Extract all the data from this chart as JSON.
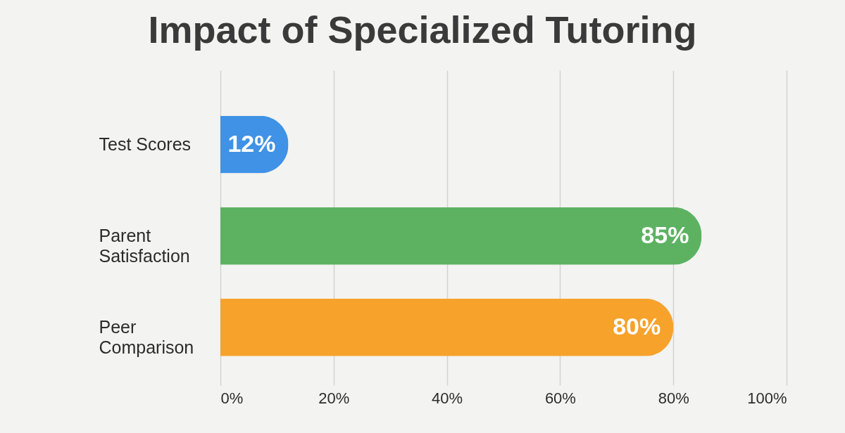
{
  "chart_data": {
    "type": "bar",
    "orientation": "horizontal",
    "title": "Impact of Specialized Tutoring",
    "categories": [
      "Test Scores",
      "Parent Satisfaction",
      "Peer Comparison"
    ],
    "values": [
      12,
      85,
      80
    ],
    "colors": [
      "#3f92e6",
      "#5db262",
      "#f6a22b"
    ],
    "value_labels": [
      "12%",
      "85%",
      "80%"
    ],
    "xlim": [
      0,
      100
    ],
    "xticks": [
      {
        "value": 0,
        "label": "0%"
      },
      {
        "value": 20,
        "label": "20%"
      },
      {
        "value": 40,
        "label": "40%"
      },
      {
        "value": 60,
        "label": "60%"
      },
      {
        "value": 80,
        "label": "80%"
      },
      {
        "value": 100,
        "label": "100%"
      }
    ],
    "grid": "x"
  }
}
